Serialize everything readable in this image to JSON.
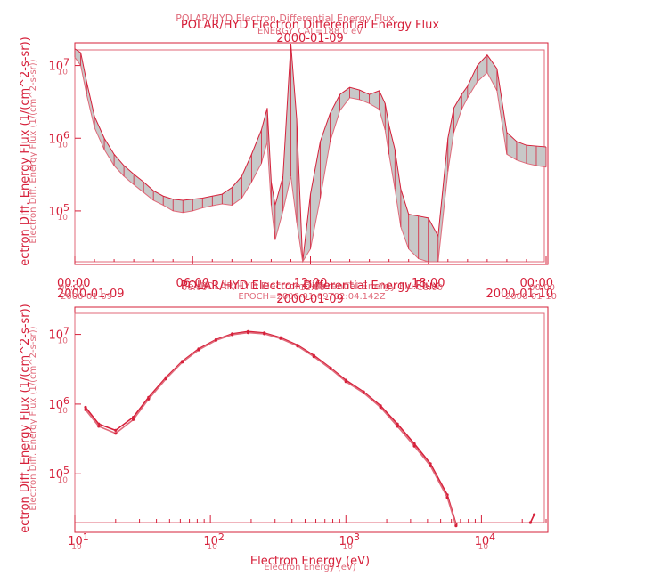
{
  "colors": {
    "primary": "#d6203a",
    "secondary": "#e06a7a",
    "band_fill": "#c8c8c8",
    "background": "#ffffff"
  },
  "chart_data": [
    {
      "type": "line",
      "title": "POLAR/HYD  Electron Differential Energy Flux",
      "title_overlay": "POLAR/HYD  Electron Differential Energy Flux",
      "subtitle": "ENERGY_CAL=188.0 eV",
      "date": "2000-01-09",
      "ylabel": "ectron Diff. Energy Flux (1/(cm^2-s-sr))",
      "ylabel_overlay": "Electron Diff. Energy Flux (1/(cm^2-s-sr))",
      "ylog": true,
      "ylim": [
        20000,
        20000000
      ],
      "yticks": [
        {
          "label": "10^5",
          "base": "10",
          "exp": "5",
          "value": 100000
        },
        {
          "label": "10^6",
          "base": "10",
          "exp": "6",
          "value": 1000000
        },
        {
          "label": "10^7",
          "base": "10",
          "exp": "7",
          "value": 10000000
        }
      ],
      "xlabel": "",
      "xlim_hours": [
        0,
        24
      ],
      "xticks": [
        {
          "label": "00:00",
          "hours": 0,
          "sub": "2000-01-09"
        },
        {
          "label": "06:00",
          "hours": 6,
          "sub": ""
        },
        {
          "label": "12:00",
          "hours": 12,
          "sub": ""
        },
        {
          "label": "18:00",
          "hours": 18,
          "sub": ""
        },
        {
          "label": "00:00",
          "hours": 24,
          "sub": "2000-01-10"
        }
      ],
      "grid": false,
      "series": [
        {
          "x_hours": [
            0,
            0.3,
            0.6,
            1.0,
            1.5,
            2.0,
            2.5,
            3.0,
            3.5,
            4.0,
            4.5,
            5.0,
            5.5,
            6.0,
            6.5,
            7.0,
            7.5,
            8.0,
            8.5,
            9.0,
            9.5,
            9.8,
            10.0,
            10.2,
            10.6,
            11.0,
            11.3,
            11.6,
            12.0,
            12.5,
            13.0,
            13.5,
            14.0,
            14.5,
            15.0,
            15.5,
            15.8,
            16.0,
            16.3,
            16.6,
            17.0,
            17.5,
            18.0,
            18.5,
            19.0,
            19.3,
            19.7,
            20.0,
            20.5,
            21.0,
            21.5,
            22.0,
            22.5,
            23.0,
            23.5,
            24.0
          ],
          "y_upper": [
            17000000,
            15000000,
            6000000,
            2000000,
            1000000,
            600000,
            420000,
            320000,
            250000,
            190000,
            160000,
            145000,
            140000,
            145000,
            150000,
            160000,
            170000,
            210000,
            300000,
            600000,
            1300000,
            2600000,
            250000,
            120000,
            300000,
            24000000,
            1800000,
            20000,
            170000,
            900000,
            2200000,
            4000000,
            5000000,
            4600000,
            4000000,
            4500000,
            3000000,
            1500000,
            700000,
            200000,
            90000,
            85000,
            80000,
            45000,
            1000000,
            2600000,
            4000000,
            5200000,
            10000000,
            14000000,
            9000000,
            1200000,
            900000,
            800000,
            780000,
            760000
          ],
          "y_lower": [
            13000000,
            10000000,
            4000000,
            1400000,
            700000,
            420000,
            300000,
            230000,
            180000,
            140000,
            120000,
            100000,
            95000,
            100000,
            110000,
            118000,
            125000,
            120000,
            150000,
            250000,
            450000,
            900000,
            120000,
            40000,
            100000,
            300000,
            70000,
            20000,
            30000,
            150000,
            900000,
            2400000,
            3600000,
            3400000,
            3000000,
            2500000,
            1300000,
            600000,
            200000,
            60000,
            30000,
            22000,
            20000,
            20000,
            350000,
            1200000,
            2500000,
            3600000,
            6000000,
            8000000,
            4500000,
            600000,
            500000,
            450000,
            420000,
            400000
          ]
        }
      ]
    },
    {
      "type": "line",
      "title": "POLAR/HYD  Electron Differential Energy Flux",
      "title_overlay": "POLAR/HYD  Electron Differential Energy Flux",
      "subtitle": "EPOCH=2000-01-09T02:04.142Z",
      "date": "2000-01-09",
      "xlabel": "Electron Energy (eV)",
      "xlabel_overlay": "Electron Energy (eV)",
      "ylabel": "ectron Diff. Energy Flux (1/(cm^2-s-sr))",
      "ylabel_overlay": "Electron Diff. Energy Flux (1/(cm^2-s-sr))",
      "xlog": true,
      "ylog": true,
      "xlim": [
        10,
        30000
      ],
      "ylim": [
        20000,
        20000000
      ],
      "xticks": [
        {
          "label": "10^1",
          "base": "10",
          "exp": "1",
          "value": 10
        },
        {
          "label": "10^2",
          "base": "10",
          "exp": "2",
          "value": 100
        },
        {
          "label": "10^3",
          "base": "10",
          "exp": "3",
          "value": 1000
        },
        {
          "label": "10^4",
          "base": "10",
          "exp": "4",
          "value": 10000
        }
      ],
      "yticks": [
        {
          "label": "10^5",
          "base": "10",
          "exp": "5",
          "value": 100000
        },
        {
          "label": "10^6",
          "base": "10",
          "exp": "6",
          "value": 1000000
        },
        {
          "label": "10^7",
          "base": "10",
          "exp": "7",
          "value": 10000000
        }
      ],
      "grid": false,
      "series": [
        {
          "x": [
            12,
            15,
            20,
            27,
            35,
            47,
            62,
            82,
            110,
            145,
            190,
            250,
            330,
            440,
            580,
            770,
            1000,
            1350,
            1800,
            2400,
            3200,
            4200,
            5600,
            6500
          ],
          "y": [
            900000,
            520000,
            420000,
            650000,
            1250000,
            2400000,
            4100000,
            6200000,
            8400000,
            10200000,
            11000000,
            10500000,
            9000000,
            7000000,
            5000000,
            3300000,
            2200000,
            1500000,
            950000,
            520000,
            270000,
            140000,
            50000,
            19000
          ]
        },
        {
          "x": [
            12,
            15,
            20,
            27,
            35,
            47,
            62,
            82,
            110,
            145,
            190,
            250,
            330,
            440,
            580,
            770,
            1000,
            1350,
            1800,
            2400,
            3200,
            4200,
            5600,
            6500
          ],
          "y": [
            830000,
            480000,
            380000,
            600000,
            1180000,
            2300000,
            4000000,
            6000000,
            8200000,
            9900000,
            10600000,
            10200000,
            8700000,
            6800000,
            4800000,
            3200000,
            2100000,
            1450000,
            900000,
            480000,
            250000,
            130000,
            46000,
            18000
          ]
        },
        {
          "x": [
            23000,
            24500
          ],
          "y": [
            20000,
            26000
          ]
        }
      ]
    }
  ]
}
